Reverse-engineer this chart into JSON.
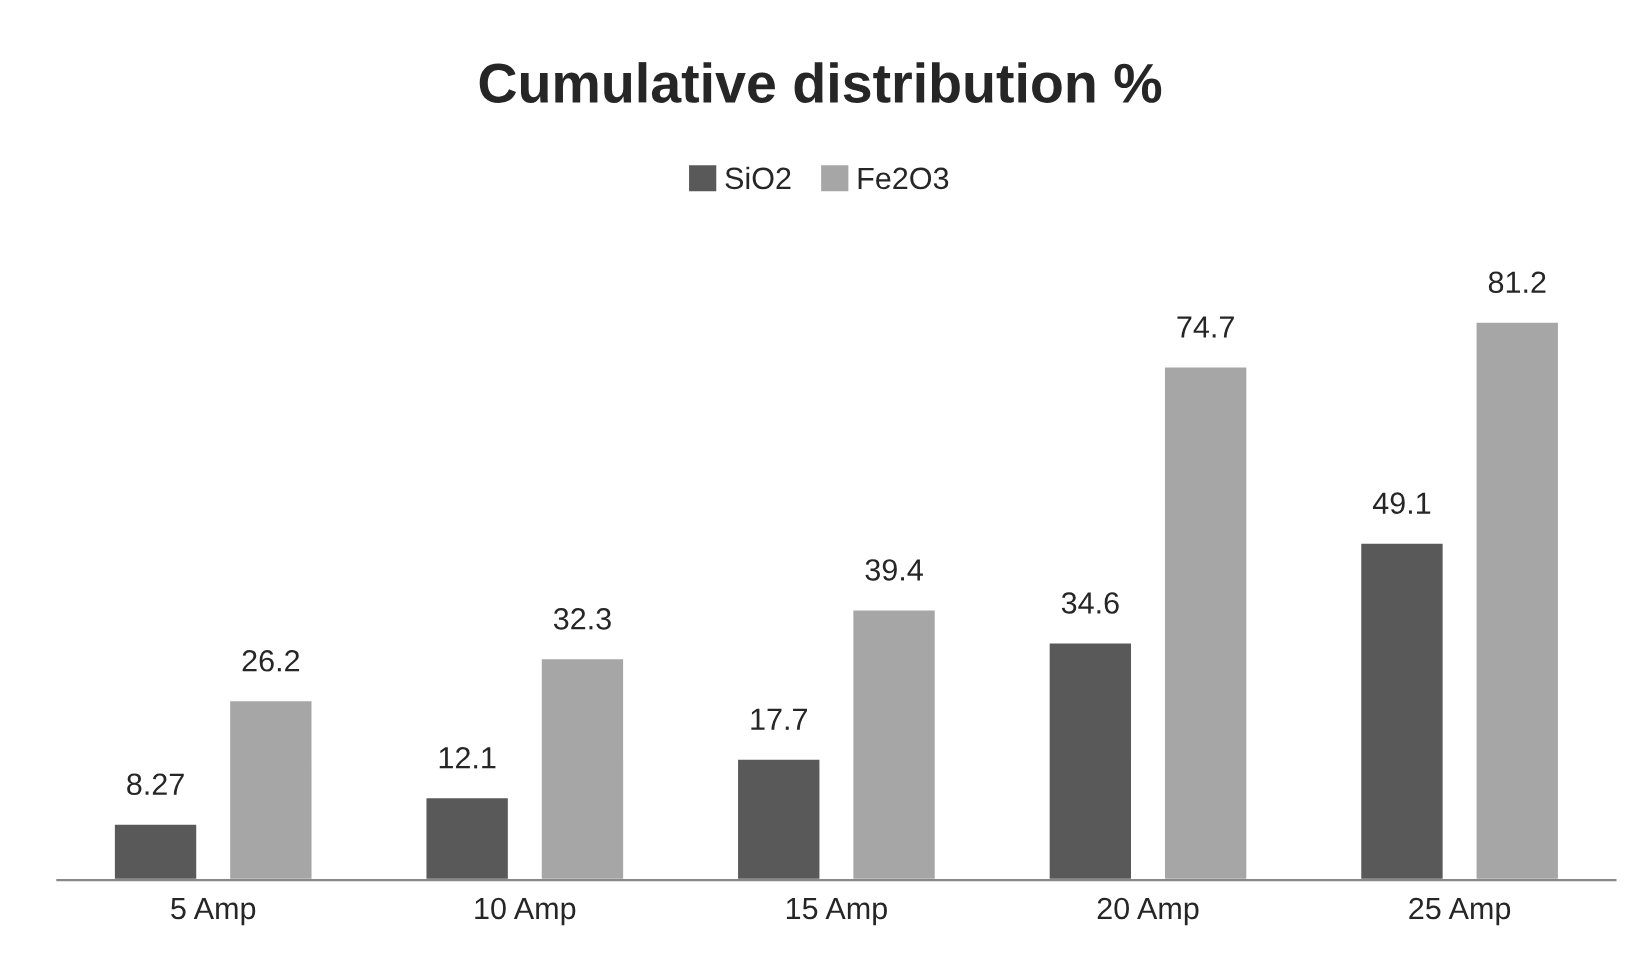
{
  "chart_data": {
    "type": "bar",
    "title": "Cumulative distribution %",
    "categories": [
      "5 Amp",
      "10 Amp",
      "15 Amp",
      "20 Amp",
      "25 Amp"
    ],
    "series": [
      {
        "name": "SiO2",
        "color": "#595959",
        "values": [
          8.27,
          12.1,
          17.7,
          34.6,
          49.1
        ]
      },
      {
        "name": "Fe2O3",
        "color": "#a6a6a6",
        "values": [
          26.2,
          32.3,
          39.4,
          74.7,
          81.2
        ]
      }
    ],
    "data_labels": true,
    "legend": "top",
    "grid": false
  }
}
